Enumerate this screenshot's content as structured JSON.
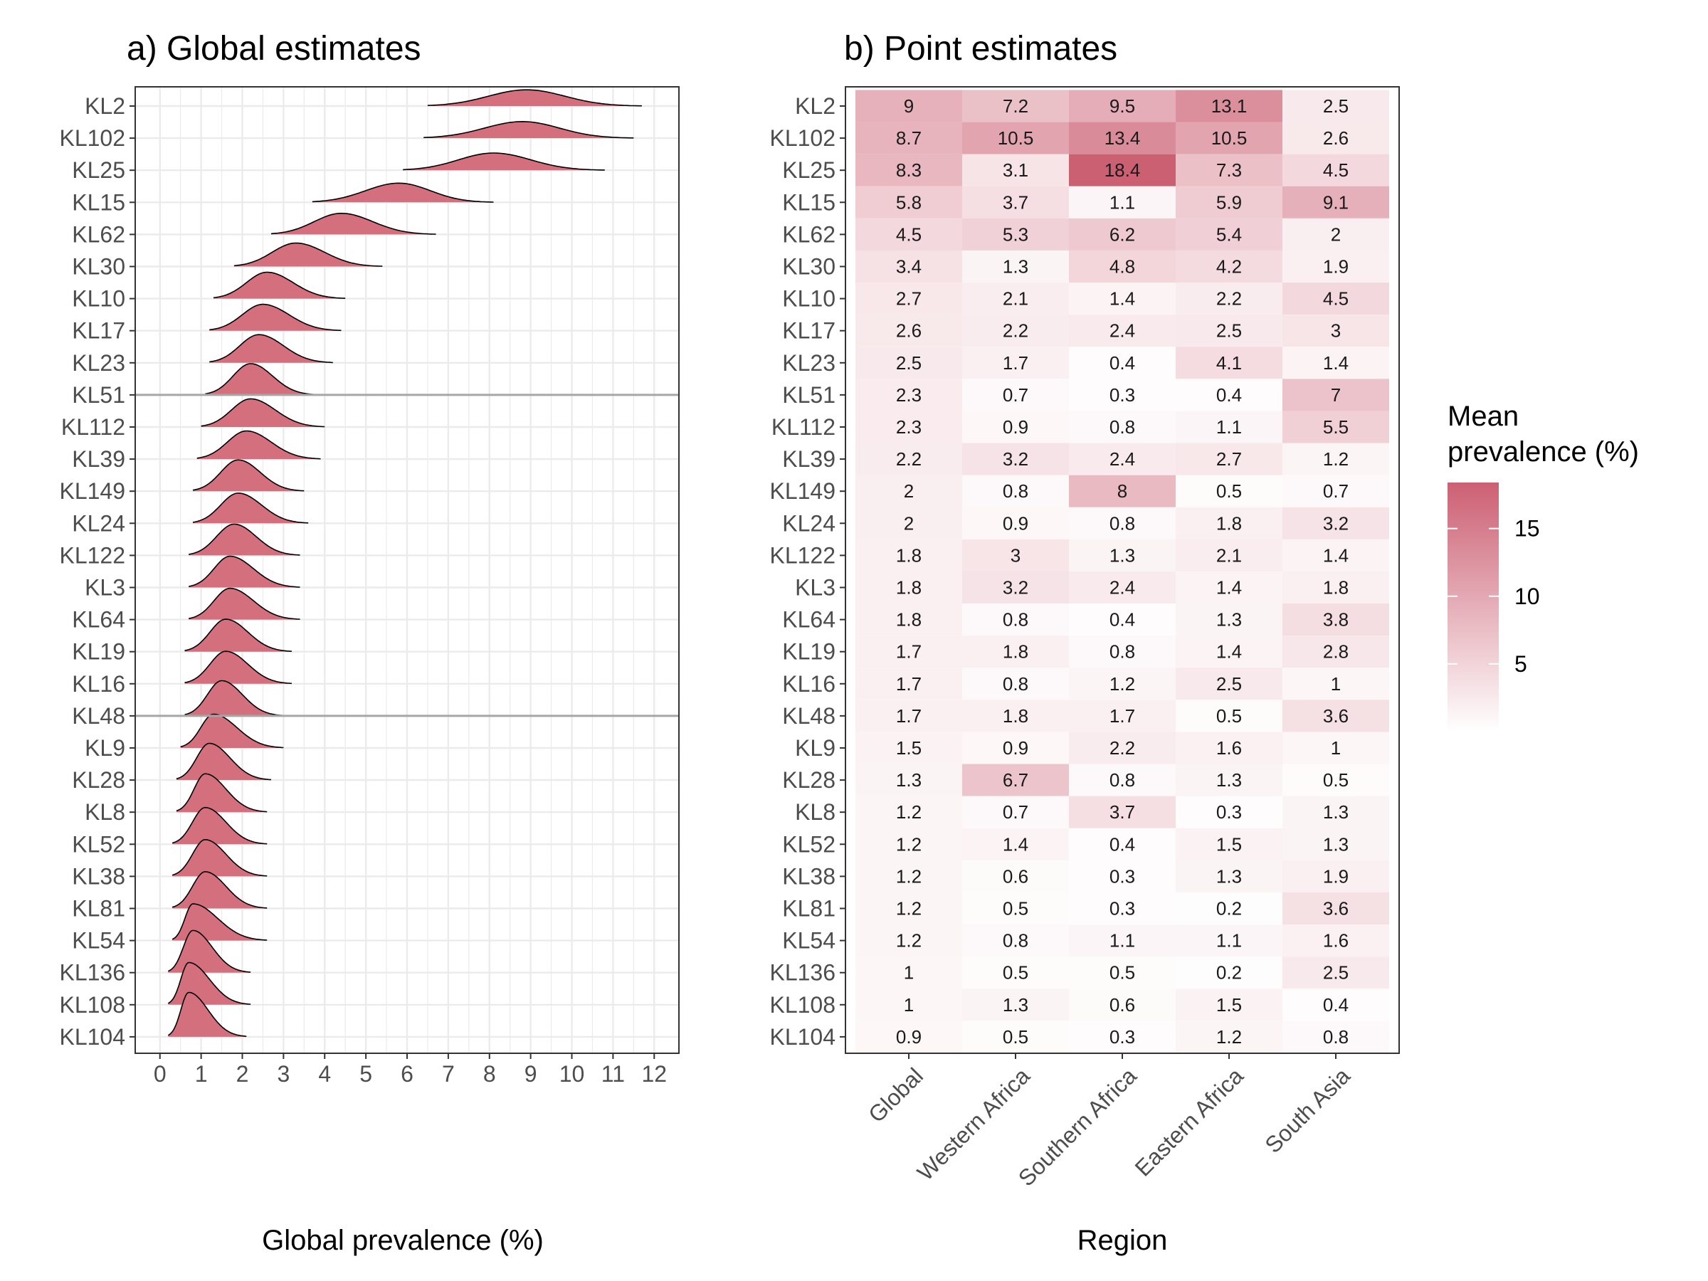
{
  "colors": {
    "ridge_fill": "#D4707E",
    "heat_high": "#CC6073",
    "heat_low": "#FFFFFF",
    "grid": "#EBEBEB",
    "refline": "#A6A6A6"
  },
  "chart_data": [
    {
      "type": "ridgeline",
      "title": "a) Global estimates",
      "xlabel": "Global prevalence (%)",
      "xlim": [
        -0.6,
        12.6
      ],
      "x_ticks": [
        0,
        1,
        2,
        3,
        4,
        5,
        6,
        7,
        8,
        9,
        10,
        11,
        12
      ],
      "grid": true,
      "reference_lines_at": [
        "KL51",
        "KL48"
      ],
      "categories": [
        "KL2",
        "KL102",
        "KL25",
        "KL15",
        "KL62",
        "KL30",
        "KL10",
        "KL17",
        "KL23",
        "KL51",
        "KL112",
        "KL39",
        "KL149",
        "KL24",
        "KL122",
        "KL3",
        "KL64",
        "KL19",
        "KL16",
        "KL48",
        "KL9",
        "KL28",
        "KL8",
        "KL52",
        "KL38",
        "KL81",
        "KL54",
        "KL136",
        "KL108",
        "KL104"
      ],
      "distributions": [
        {
          "mode": 8.9,
          "min": 6.5,
          "max": 11.7
        },
        {
          "mode": 8.8,
          "min": 6.4,
          "max": 11.5
        },
        {
          "mode": 8.1,
          "min": 5.9,
          "max": 10.8
        },
        {
          "mode": 5.8,
          "min": 3.7,
          "max": 8.1
        },
        {
          "mode": 4.4,
          "min": 2.7,
          "max": 6.7
        },
        {
          "mode": 3.3,
          "min": 1.8,
          "max": 5.4
        },
        {
          "mode": 2.6,
          "min": 1.3,
          "max": 4.5
        },
        {
          "mode": 2.5,
          "min": 1.2,
          "max": 4.4
        },
        {
          "mode": 2.4,
          "min": 1.2,
          "max": 4.2
        },
        {
          "mode": 2.2,
          "min": 1.1,
          "max": 3.8
        },
        {
          "mode": 2.2,
          "min": 1.0,
          "max": 4.0
        },
        {
          "mode": 2.1,
          "min": 0.9,
          "max": 3.9
        },
        {
          "mode": 1.9,
          "min": 0.8,
          "max": 3.5
        },
        {
          "mode": 1.9,
          "min": 0.8,
          "max": 3.6
        },
        {
          "mode": 1.8,
          "min": 0.7,
          "max": 3.4
        },
        {
          "mode": 1.7,
          "min": 0.7,
          "max": 3.4
        },
        {
          "mode": 1.7,
          "min": 0.7,
          "max": 3.4
        },
        {
          "mode": 1.6,
          "min": 0.6,
          "max": 3.2
        },
        {
          "mode": 1.6,
          "min": 0.6,
          "max": 3.2
        },
        {
          "mode": 1.5,
          "min": 0.6,
          "max": 3.0
        },
        {
          "mode": 1.3,
          "min": 0.5,
          "max": 3.0
        },
        {
          "mode": 1.2,
          "min": 0.4,
          "max": 2.7
        },
        {
          "mode": 1.1,
          "min": 0.4,
          "max": 2.6
        },
        {
          "mode": 1.1,
          "min": 0.3,
          "max": 2.6
        },
        {
          "mode": 1.1,
          "min": 0.3,
          "max": 2.6
        },
        {
          "mode": 1.1,
          "min": 0.3,
          "max": 2.6
        },
        {
          "mode": 0.8,
          "min": 0.3,
          "max": 2.6
        },
        {
          "mode": 0.8,
          "min": 0.2,
          "max": 2.2
        },
        {
          "mode": 0.7,
          "min": 0.2,
          "max": 2.2
        },
        {
          "mode": 0.7,
          "min": 0.2,
          "max": 2.1
        }
      ]
    },
    {
      "type": "heatmap",
      "title": "b) Point estimates",
      "xlabel": "Region",
      "x_categories": [
        "Global",
        "Western Africa",
        "Southern Africa",
        "Eastern Africa",
        "South Asia"
      ],
      "y_categories": [
        "KL2",
        "KL102",
        "KL25",
        "KL15",
        "KL62",
        "KL30",
        "KL10",
        "KL17",
        "KL23",
        "KL51",
        "KL112",
        "KL39",
        "KL149",
        "KL24",
        "KL122",
        "KL3",
        "KL64",
        "KL19",
        "KL16",
        "KL48",
        "KL9",
        "KL28",
        "KL8",
        "KL52",
        "KL38",
        "KL81",
        "KL54",
        "KL136",
        "KL108",
        "KL104"
      ],
      "values": [
        [
          9,
          7.2,
          9.5,
          13.1,
          2.5
        ],
        [
          8.7,
          10.5,
          13.4,
          10.5,
          2.6
        ],
        [
          8.3,
          3.1,
          18.4,
          7.3,
          4.5
        ],
        [
          5.8,
          3.7,
          1.1,
          5.9,
          9.1
        ],
        [
          4.5,
          5.3,
          6.2,
          5.4,
          2
        ],
        [
          3.4,
          1.3,
          4.8,
          4.2,
          1.9
        ],
        [
          2.7,
          2.1,
          1.4,
          2.2,
          4.5
        ],
        [
          2.6,
          2.2,
          2.4,
          2.5,
          3
        ],
        [
          2.5,
          1.7,
          0.4,
          4.1,
          1.4
        ],
        [
          2.3,
          0.7,
          0.3,
          0.4,
          7
        ],
        [
          2.3,
          0.9,
          0.8,
          1.1,
          5.5
        ],
        [
          2.2,
          3.2,
          2.4,
          2.7,
          1.2
        ],
        [
          2,
          0.8,
          8,
          0.5,
          0.7
        ],
        [
          2,
          0.9,
          0.8,
          1.8,
          3.2
        ],
        [
          1.8,
          3,
          1.3,
          2.1,
          1.4
        ],
        [
          1.8,
          3.2,
          2.4,
          1.4,
          1.8
        ],
        [
          1.8,
          0.8,
          0.4,
          1.3,
          3.8
        ],
        [
          1.7,
          1.8,
          0.8,
          1.4,
          2.8
        ],
        [
          1.7,
          0.8,
          1.2,
          2.5,
          1
        ],
        [
          1.7,
          1.8,
          1.7,
          0.5,
          3.6
        ],
        [
          1.5,
          0.9,
          2.2,
          1.6,
          1
        ],
        [
          1.3,
          6.7,
          0.8,
          1.3,
          0.5
        ],
        [
          1.2,
          0.7,
          3.7,
          0.3,
          1.3
        ],
        [
          1.2,
          1.4,
          0.4,
          1.5,
          1.3
        ],
        [
          1.2,
          0.6,
          0.3,
          1.3,
          1.9
        ],
        [
          1.2,
          0.5,
          0.3,
          0.2,
          3.6
        ],
        [
          1.2,
          0.8,
          1.1,
          1.1,
          1.6
        ],
        [
          1,
          0.5,
          0.5,
          0.2,
          2.5
        ],
        [
          1,
          1.3,
          0.6,
          1.5,
          0.4
        ],
        [
          0.9,
          0.5,
          0.3,
          1.2,
          0.8
        ]
      ],
      "legend": {
        "title_line1": "Mean",
        "title_line2": "prevalence (%)",
        "ticks": [
          5,
          10,
          15
        ],
        "range": [
          0,
          18.4
        ],
        "placement": "right"
      }
    }
  ]
}
